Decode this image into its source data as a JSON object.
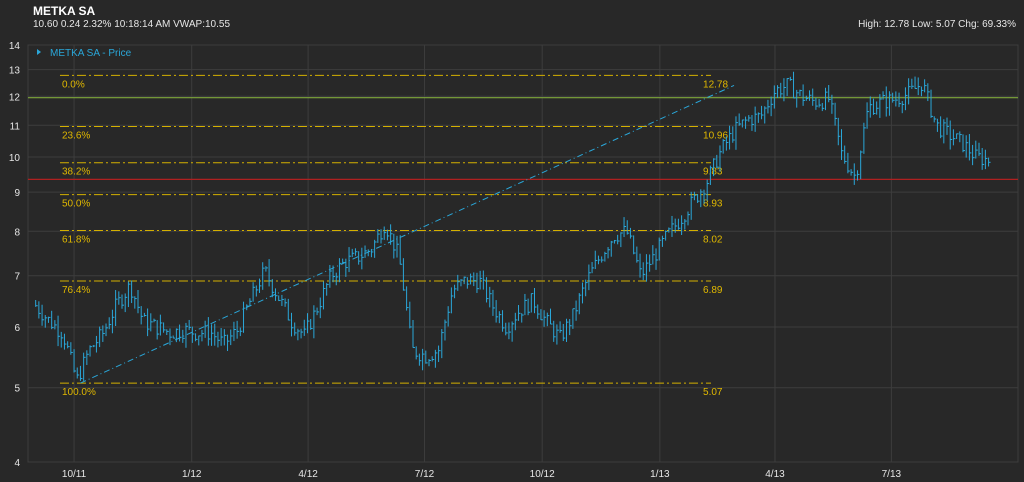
{
  "header": {
    "title": "METKA SA",
    "last": "10.60",
    "change": "0.24",
    "change_pct": "2.32%",
    "time": "10:18:14 AM",
    "vwap_label": "VWAP:",
    "vwap": "10.55",
    "high_label": "High:",
    "high": "12.78",
    "low_label": "Low:",
    "low": "5.07",
    "chg_label": "Chg:",
    "chg": "69.33%"
  },
  "colors": {
    "background": "#282828",
    "grid": "#3d3d3d",
    "price": "#2aa7d9",
    "fib": "#d4b000",
    "fib_text": "#e0b800",
    "resistance": "#7ea73a",
    "support": "#b02020",
    "axis_text": "#e6e6e6"
  },
  "chart_data": {
    "type": "line",
    "style": "hlc-bars",
    "y_scale": "log",
    "ylim": [
      4,
      14
    ],
    "y_ticks": [
      "4",
      "5",
      "6",
      "7",
      "8",
      "9",
      "10",
      "11",
      "12",
      "13",
      "14"
    ],
    "x_ticks": [
      "10/11",
      "1/12",
      "4/12",
      "7/12",
      "10/12",
      "1/13",
      "4/13",
      "7/13"
    ],
    "legend": {
      "label": "METKA SA - Price",
      "position": "top-left"
    },
    "series": [
      {
        "name": "METKA SA - Price",
        "x": [
          "2011-09-01",
          "2011-09-12",
          "2011-09-22",
          "2011-10-03",
          "2011-10-13",
          "2011-10-24",
          "2011-11-03",
          "2011-11-14",
          "2011-11-24",
          "2011-12-05",
          "2011-12-15",
          "2011-12-26",
          "2012-01-05",
          "2012-01-16",
          "2012-01-26",
          "2012-02-06",
          "2012-02-16",
          "2012-02-27",
          "2012-03-08",
          "2012-03-19",
          "2012-03-29",
          "2012-04-09",
          "2012-04-19",
          "2012-04-30",
          "2012-05-10",
          "2012-05-21",
          "2012-05-31",
          "2012-06-11",
          "2012-06-21",
          "2012-07-02",
          "2012-07-12",
          "2012-07-23",
          "2012-08-02",
          "2012-08-13",
          "2012-08-23",
          "2012-09-03",
          "2012-09-13",
          "2012-09-24",
          "2012-10-04",
          "2012-10-15",
          "2012-10-25",
          "2012-11-05",
          "2012-11-15",
          "2012-11-26",
          "2012-12-06",
          "2012-12-17",
          "2012-12-27",
          "2013-01-07",
          "2013-01-17",
          "2013-01-28",
          "2013-02-07",
          "2013-02-18",
          "2013-02-28",
          "2013-03-11",
          "2013-03-21",
          "2013-04-01",
          "2013-04-11",
          "2013-04-22",
          "2013-05-02",
          "2013-05-13",
          "2013-05-23",
          "2013-06-03",
          "2013-06-13",
          "2013-06-24",
          "2013-07-04",
          "2013-07-15",
          "2013-07-25",
          "2013-08-05",
          "2013-08-15",
          "2013-08-26",
          "2013-09-05",
          "2013-09-16"
        ],
        "y": [
          6.4,
          6.1,
          5.9,
          5.1,
          5.6,
          5.9,
          6.4,
          6.8,
          6.1,
          6.0,
          5.9,
          5.95,
          5.9,
          5.9,
          5.7,
          5.95,
          6.5,
          7.1,
          6.6,
          6.1,
          5.85,
          6.4,
          7.0,
          7.3,
          7.4,
          7.6,
          8.2,
          7.4,
          5.6,
          5.5,
          5.6,
          6.7,
          6.9,
          6.9,
          6.4,
          6.0,
          6.3,
          6.5,
          6.1,
          5.8,
          6.2,
          6.9,
          7.4,
          7.9,
          8.0,
          7.0,
          7.4,
          7.9,
          8.3,
          8.8,
          9.3,
          10.2,
          10.8,
          11.2,
          11.3,
          12.2,
          12.4,
          12.0,
          11.8,
          11.9,
          10.1,
          9.4,
          11.6,
          11.8,
          11.9,
          12.1,
          12.5,
          11.0,
          10.7,
          10.4,
          10.0,
          9.9
        ]
      }
    ],
    "fibonacci": {
      "levels": [
        {
          "label": "0.0%",
          "price": "12.78"
        },
        {
          "label": "23.6%",
          "price": "10.96"
        },
        {
          "label": "38.2%",
          "price": "9.83"
        },
        {
          "label": "50.0%",
          "price": "8.93"
        },
        {
          "label": "61.8%",
          "price": "8.02"
        },
        {
          "label": "76.4%",
          "price": "6.89"
        },
        {
          "label": "100.0%",
          "price": "5.07"
        }
      ],
      "start_date": "2011-09-20",
      "end_date": "2013-02-10",
      "trend_from": [
        "2011-10-06",
        5.07
      ],
      "trend_to": [
        "2013-02-28",
        12.4
      ]
    },
    "horizontal_lines": [
      {
        "price": 11.95,
        "color": "#7ea73a"
      },
      {
        "price": 9.35,
        "color": "#b02020"
      }
    ]
  }
}
